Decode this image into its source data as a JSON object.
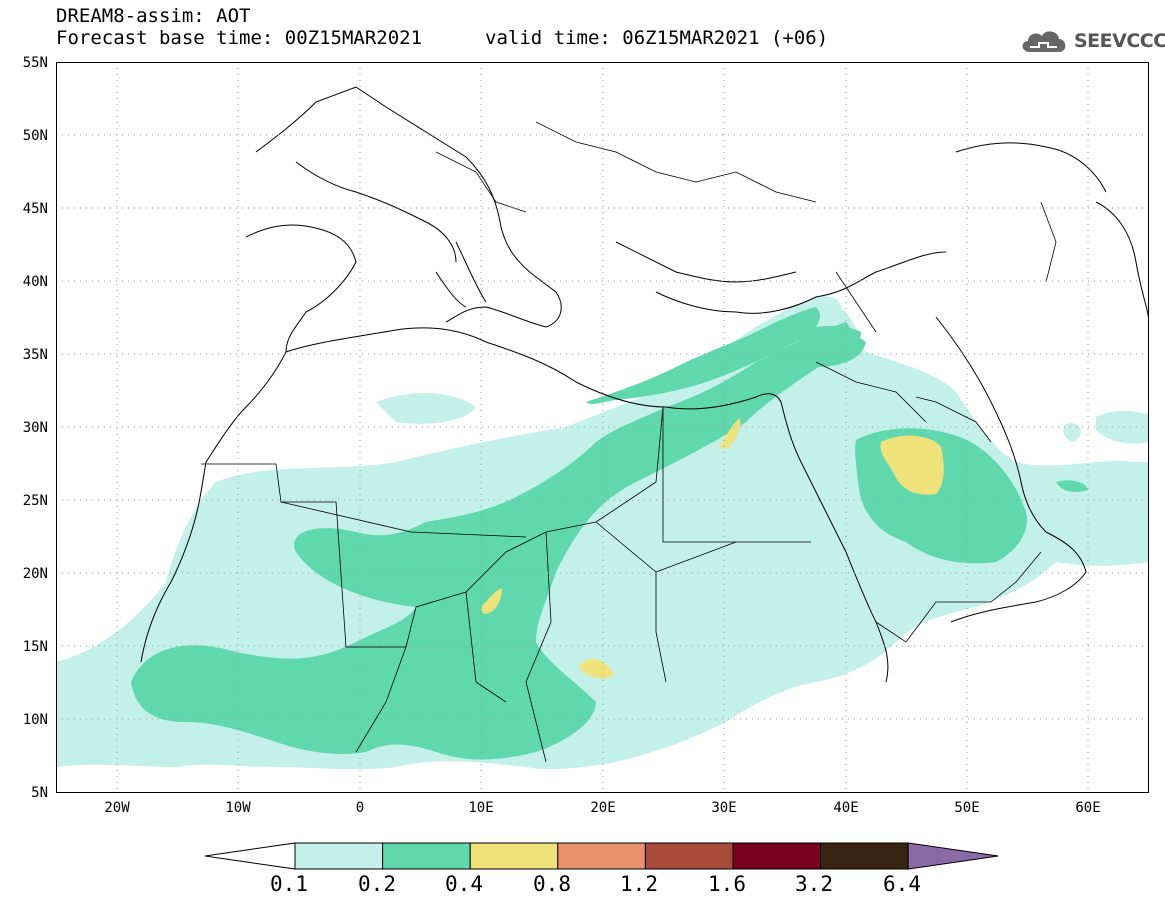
{
  "header": {
    "title": "DREAM8-assim: AOT",
    "base_time": "Forecast base time: 00Z15MAR2021",
    "valid_time": "valid time: 06Z15MAR2021 (+06)"
  },
  "logo": {
    "text": "SEEVCCC",
    "icon": "cloud-icon"
  },
  "axes": {
    "y_labels": [
      "55N",
      "50N",
      "45N",
      "40N",
      "35N",
      "30N",
      "25N",
      "20N",
      "15N",
      "10N",
      "5N"
    ],
    "x_labels": [
      "20W",
      "10W",
      "0",
      "10E",
      "20E",
      "30E",
      "40E",
      "50E",
      "60E"
    ]
  },
  "colorbar": {
    "labels": [
      "0.1",
      "0.2",
      "0.4",
      "0.8",
      "1.2",
      "1.6",
      "3.2",
      "6.4"
    ],
    "colors": [
      "#ffffff",
      "#c4f0ea",
      "#5ed8ac",
      "#f0e27a",
      "#e8916a",
      "#a84a3a",
      "#7a0020",
      "#3a2414",
      "#8c6aa8"
    ]
  },
  "map": {
    "extent": {
      "lon": [
        -25,
        65
      ],
      "lat": [
        5,
        55
      ]
    },
    "grid": true,
    "fill_colors": {
      "light": "#c4f0ea",
      "mid": "#5ed8ac",
      "high": "#f0e27a"
    }
  }
}
